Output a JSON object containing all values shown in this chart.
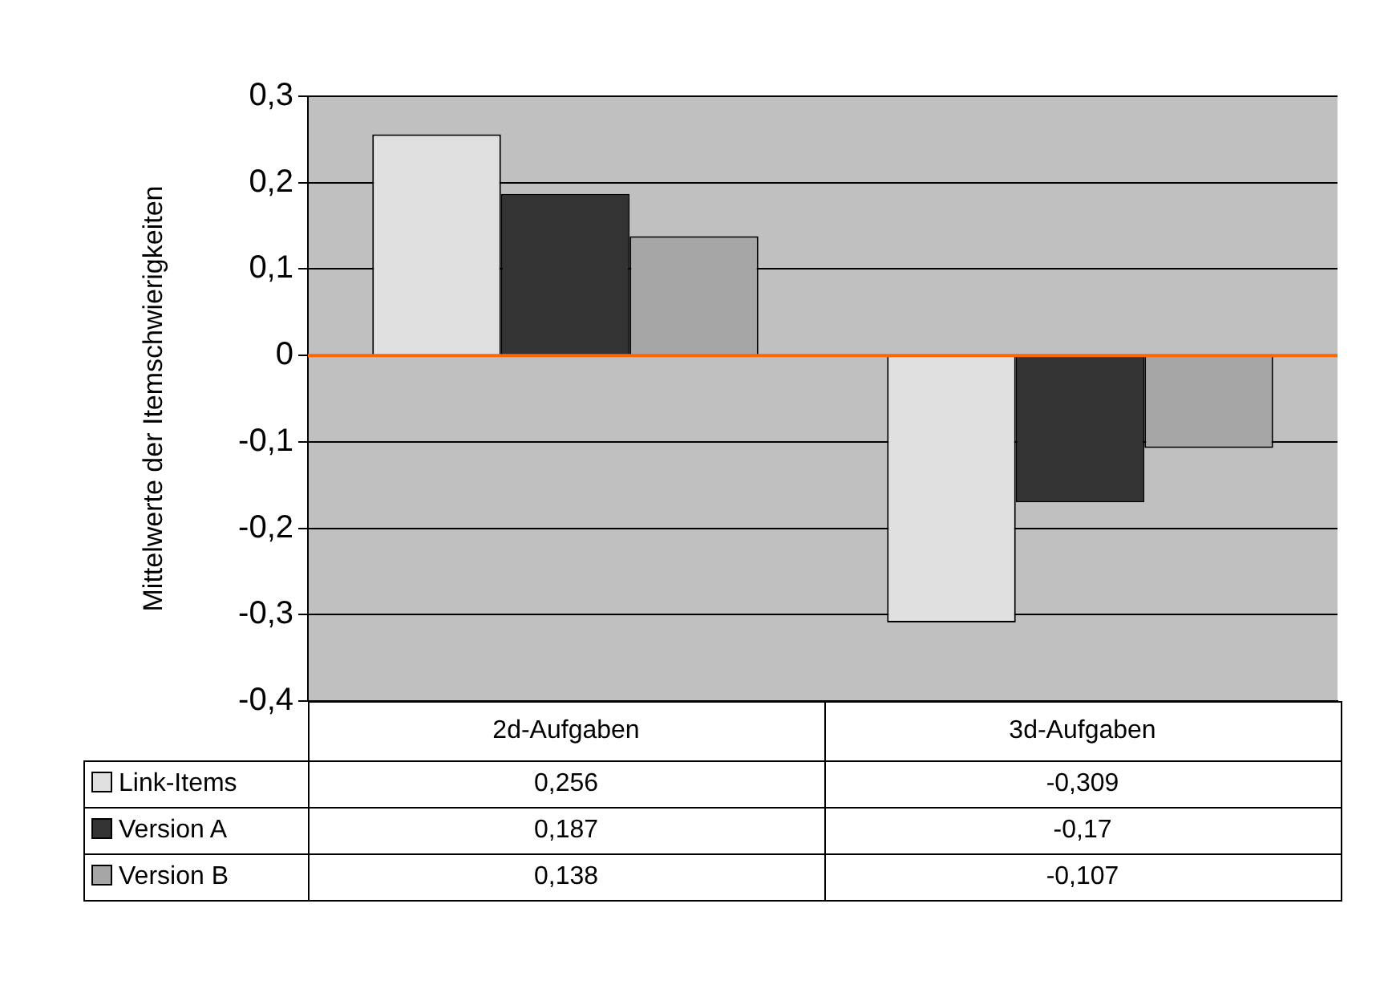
{
  "chart_data": {
    "type": "bar",
    "ylabel": "Mittelwerte der Itemschwierigkeiten",
    "categories": [
      "2d-Aufgaben",
      "3d-Aufgaben"
    ],
    "series": [
      {
        "name": "Link-Items",
        "color": "#e0e0e0",
        "values": [
          0.256,
          -0.309
        ],
        "value_labels": [
          "0,256",
          "-0,309"
        ]
      },
      {
        "name": "Version A",
        "color": "#333333",
        "values": [
          0.187,
          -0.17
        ],
        "value_labels": [
          "0,187",
          "-0,17"
        ]
      },
      {
        "name": "Version B",
        "color": "#a6a6a6",
        "values": [
          0.138,
          -0.107
        ],
        "value_labels": [
          "0,138",
          "-0,107"
        ]
      }
    ],
    "ylim": [
      -0.4,
      0.3
    ],
    "yticks": [
      {
        "value": -0.4,
        "label": "-0,4"
      },
      {
        "value": -0.3,
        "label": "-0,3"
      },
      {
        "value": -0.2,
        "label": "-0,2"
      },
      {
        "value": -0.1,
        "label": "-0,1"
      },
      0,
      {
        "value": 0.1,
        "label": "0,1"
      },
      {
        "value": 0.2,
        "label": "0,2"
      },
      {
        "value": 0.3,
        "label": "0,3"
      }
    ],
    "ref_lines": [
      {
        "axis": "y",
        "value": 0,
        "color": "#ff6600"
      }
    ],
    "grid": "y",
    "legend": "bottom left"
  }
}
